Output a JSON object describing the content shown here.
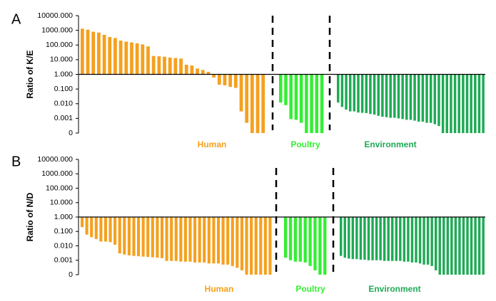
{
  "chart_data": [
    {
      "type": "bar",
      "panel": "A",
      "ylabel": "Ratio of K/E",
      "log": true,
      "baseline": 1,
      "ylim": [
        0.0001,
        10000
      ],
      "yticks": [
        {
          "value": 10000,
          "label": "10000.000"
        },
        {
          "value": 1000,
          "label": "1000.000"
        },
        {
          "value": 100,
          "label": "100.000"
        },
        {
          "value": 10,
          "label": "10.000"
        },
        {
          "value": 1,
          "label": "1.000"
        },
        {
          "value": 0.1,
          "label": "0.100"
        },
        {
          "value": 0.01,
          "label": "0.010"
        },
        {
          "value": 0.001,
          "label": "0.001"
        },
        {
          "value": 0.0001,
          "label": "0"
        }
      ],
      "series": [
        {
          "name": "Human",
          "color": "#f5a01e",
          "values": [
            1300,
            1100,
            800,
            700,
            500,
            350,
            300,
            200,
            170,
            150,
            130,
            110,
            80,
            18,
            17,
            16,
            14,
            13,
            12,
            4.5,
            4,
            2.5,
            2,
            1.5,
            0.6,
            0.2,
            0.18,
            0.14,
            0.12,
            0.003,
            0.0005,
            0.0001,
            0.0001,
            0.0001
          ]
        },
        {
          "name": "Poultry",
          "color": "#33ee33",
          "values": [
            0.012,
            0.008,
            0.0009,
            0.0008,
            0.0005,
            0.0001,
            0.0001,
            0.0001,
            0.0001
          ]
        },
        {
          "name": "Environment",
          "color": "#1faa55",
          "values": [
            0.012,
            0.006,
            0.004,
            0.003,
            0.003,
            0.0025,
            0.0024,
            0.0023,
            0.002,
            0.0018,
            0.0015,
            0.0013,
            0.0012,
            0.0011,
            0.0011,
            0.001,
            0.0009,
            0.0008,
            0.0008,
            0.0007,
            0.0006,
            0.0006,
            0.0005,
            0.0005,
            0.0004,
            0.0003,
            0.0001,
            0.0001,
            0.0001,
            0.0001,
            0.0001,
            0.0001,
            0.0001,
            0.0001,
            0.0001,
            0.0001,
            0.0001
          ]
        }
      ]
    },
    {
      "type": "bar",
      "panel": "B",
      "ylabel": "Ratio of N/D",
      "log": true,
      "baseline": 1,
      "ylim": [
        0.0001,
        10000
      ],
      "yticks": [
        {
          "value": 10000,
          "label": "10000.000"
        },
        {
          "value": 1000,
          "label": "1000.000"
        },
        {
          "value": 100,
          "label": "100.000"
        },
        {
          "value": 10,
          "label": "10.000"
        },
        {
          "value": 1,
          "label": "1.000"
        },
        {
          "value": 0.1,
          "label": "0.100"
        },
        {
          "value": 0.01,
          "label": "0.010"
        },
        {
          "value": 0.001,
          "label": "0.001"
        },
        {
          "value": 0.0001,
          "label": "0"
        }
      ],
      "series": [
        {
          "name": "Human",
          "color": "#f5a01e",
          "values": [
            0.2,
            0.06,
            0.04,
            0.03,
            0.02,
            0.02,
            0.018,
            0.012,
            0.003,
            0.0025,
            0.0022,
            0.002,
            0.0019,
            0.0018,
            0.0017,
            0.0016,
            0.0015,
            0.0014,
            0.0009,
            0.0009,
            0.0009,
            0.0008,
            0.0008,
            0.0008,
            0.0007,
            0.0007,
            0.0007,
            0.0006,
            0.0006,
            0.0006,
            0.0005,
            0.0005,
            0.0004,
            0.0003,
            0.0002,
            0.0001,
            0.0001,
            0.0001,
            0.0001,
            0.0001,
            0.0001
          ]
        },
        {
          "name": "Poultry",
          "color": "#33ee33",
          "values": [
            0.0015,
            0.001,
            0.0008,
            0.0008,
            0.0007,
            0.0004,
            0.0002,
            0.0001,
            0.0001
          ]
        },
        {
          "name": "Environment",
          "color": "#1faa55",
          "values": [
            0.002,
            0.0015,
            0.0013,
            0.0012,
            0.0012,
            0.0011,
            0.0011,
            0.001,
            0.001,
            0.001,
            0.001,
            0.0009,
            0.0009,
            0.0009,
            0.0009,
            0.0009,
            0.0008,
            0.0008,
            0.0007,
            0.0007,
            0.0006,
            0.0005,
            0.0005,
            0.0004,
            0.0002,
            0.0001,
            0.0001,
            0.0001,
            0.0001,
            0.0001,
            0.0001,
            0.0001,
            0.0001,
            0.0001,
            0.0001,
            0.0001,
            0.0001
          ]
        }
      ]
    }
  ]
}
